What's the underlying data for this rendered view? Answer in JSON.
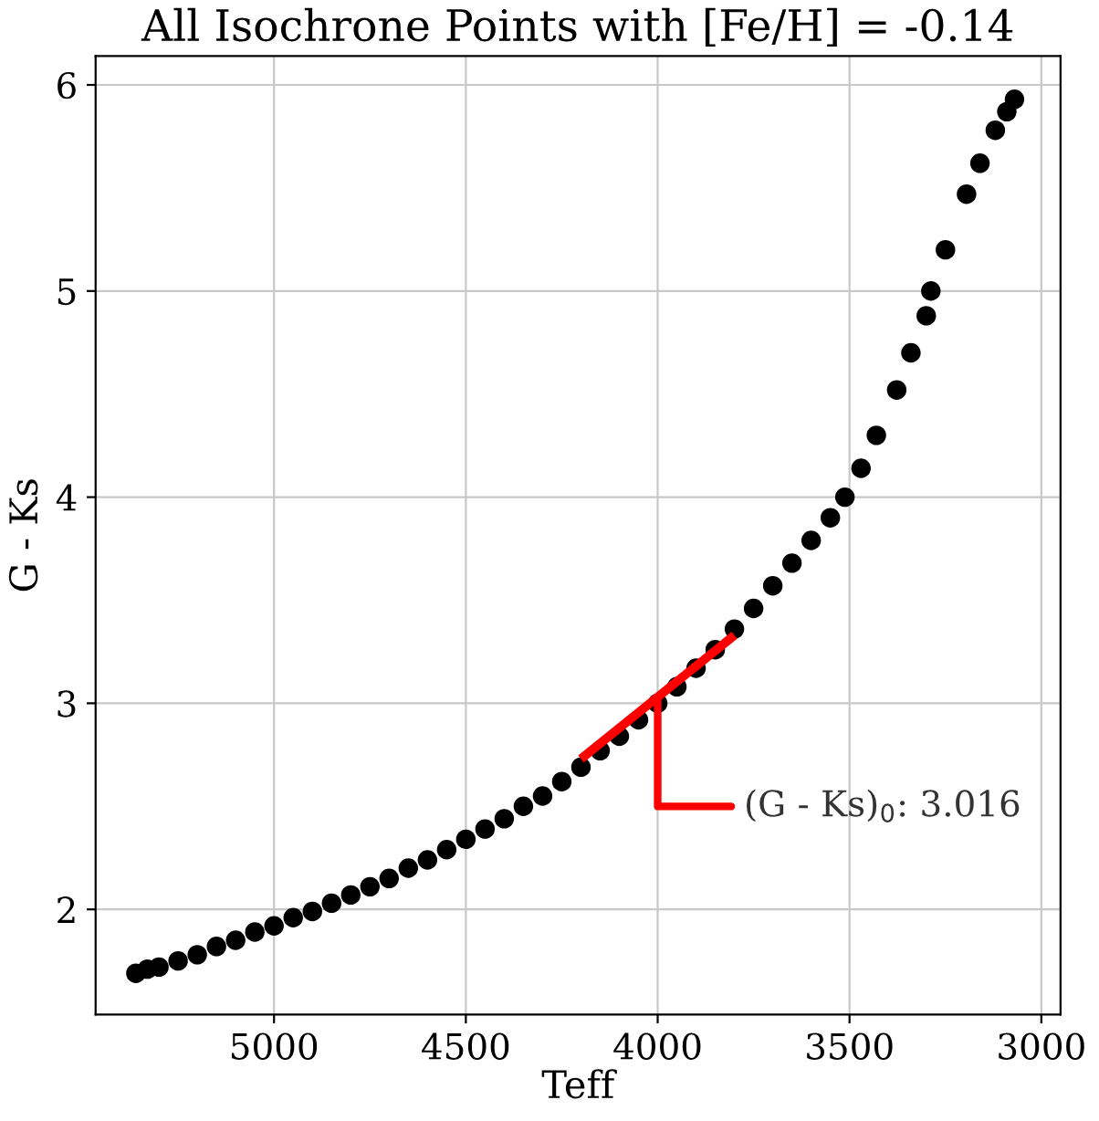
{
  "chart_data": {
    "type": "scatter",
    "title": "All Isochrone Points with [Fe/H] = -0.14",
    "xlabel": "Teff",
    "ylabel": "G - Ks",
    "xlim": [
      5465,
      2950
    ],
    "ylim": [
      1.49,
      6.14
    ],
    "xticks": [
      5000,
      4500,
      4000,
      3500,
      3000
    ],
    "yticks": [
      2,
      3,
      4,
      5,
      6
    ],
    "grid": true,
    "series": [
      {
        "color": "#000000",
        "marker": "circle",
        "x": [
          5360,
          5330,
          5300,
          5250,
          5200,
          5150,
          5100,
          5050,
          5000,
          4950,
          4900,
          4850,
          4800,
          4750,
          4700,
          4650,
          4600,
          4550,
          4500,
          4450,
          4400,
          4350,
          4300,
          4250,
          4200,
          4150,
          4100,
          4050,
          4000,
          3950,
          3900,
          3850,
          3800,
          3750,
          3700,
          3650,
          3600,
          3550,
          3512,
          3470,
          3430,
          3377,
          3340,
          3300,
          3288,
          3250,
          3195,
          3160,
          3120,
          3090,
          3070
        ],
        "values": [
          1.69,
          1.71,
          1.72,
          1.75,
          1.78,
          1.82,
          1.85,
          1.89,
          1.92,
          1.96,
          1.99,
          2.03,
          2.07,
          2.11,
          2.15,
          2.2,
          2.24,
          2.29,
          2.34,
          2.39,
          2.44,
          2.5,
          2.55,
          2.62,
          2.69,
          2.77,
          2.84,
          2.92,
          3.0,
          3.08,
          3.17,
          3.26,
          3.36,
          3.46,
          3.57,
          3.68,
          3.79,
          3.9,
          4.0,
          4.14,
          4.3,
          4.52,
          4.7,
          4.88,
          5.0,
          5.2,
          5.47,
          5.62,
          5.78,
          5.87,
          5.93
        ]
      },
      {
        "type": "line",
        "color": "#ff0000",
        "x": [
          4200,
          3800
        ],
        "values": [
          2.73,
          3.33
        ]
      }
    ],
    "annotations": [
      {
        "text": "(G - Ks)$_{0}$: 3.016",
        "x": 4000,
        "y": 3.016
      }
    ]
  }
}
